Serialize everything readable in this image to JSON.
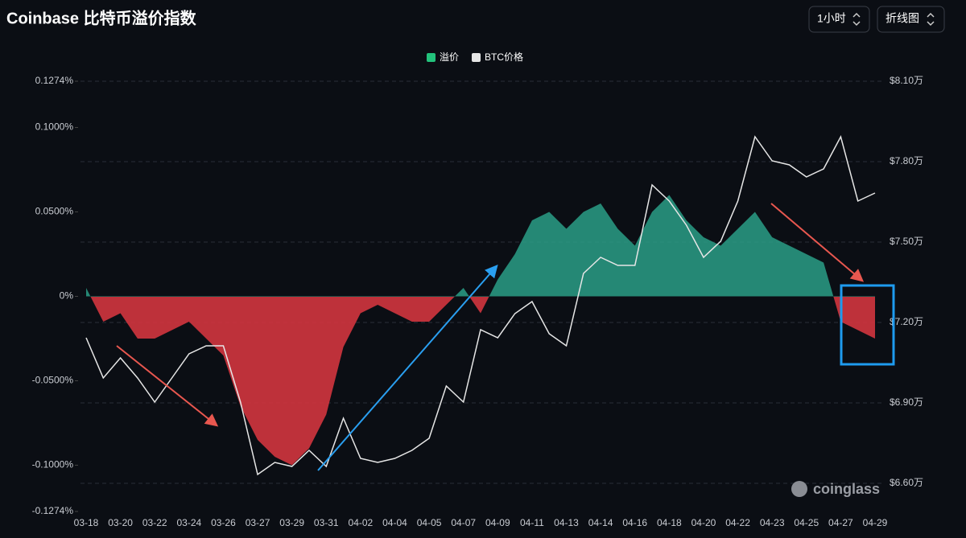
{
  "header": {
    "title": "Coinbase 比特币溢价指数",
    "interval": "1小时",
    "chart_style": "折线图"
  },
  "watermark": "coinglass",
  "chart_data": {
    "type": "combo",
    "categories": [
      "03-18",
      null,
      "03-20",
      null,
      "03-22",
      null,
      "03-24",
      null,
      "03-26",
      null,
      "03-27",
      null,
      "03-29",
      null,
      "03-31",
      null,
      "04-02",
      null,
      "04-04",
      null,
      "04-05",
      null,
      "04-07",
      null,
      "04-09",
      null,
      "04-11",
      null,
      "04-13",
      null,
      "04-14",
      null,
      "04-16",
      null,
      "04-18",
      null,
      "04-20",
      null,
      "04-22",
      null,
      "04-23",
      null,
      "04-25",
      null,
      "04-27",
      null,
      "04-29"
    ],
    "series": [
      {
        "name": "溢价",
        "type": "area",
        "color": "#2a9d86",
        "negative_color": "#d2353e",
        "values": [
          0.005,
          -0.015,
          -0.01,
          -0.025,
          -0.025,
          -0.02,
          -0.015,
          -0.025,
          -0.035,
          -0.065,
          -0.085,
          -0.095,
          -0.1,
          -0.09,
          -0.07,
          -0.03,
          -0.01,
          -0.005,
          -0.01,
          -0.015,
          -0.015,
          -0.005,
          0.005,
          -0.01,
          0.01,
          0.025,
          0.045,
          0.05,
          0.04,
          0.05,
          0.055,
          0.04,
          0.03,
          0.05,
          0.06,
          0.045,
          0.035,
          0.03,
          0.04,
          0.05,
          0.035,
          0.03,
          0.025,
          0.02,
          -0.015,
          -0.02,
          -0.025
        ]
      },
      {
        "name": "BTC价格",
        "type": "line",
        "axis": "y2",
        "color": "#e6e6e6",
        "values": [
          7.143,
          6.993,
          7.068,
          6.993,
          6.903,
          6.993,
          7.083,
          7.113,
          7.113,
          6.903,
          6.633,
          6.678,
          6.663,
          6.723,
          6.663,
          6.843,
          6.693,
          6.678,
          6.693,
          6.723,
          6.768,
          6.963,
          6.903,
          7.173,
          7.143,
          7.233,
          7.278,
          7.158,
          7.113,
          7.383,
          7.443,
          7.413,
          7.413,
          7.713,
          7.653,
          7.563,
          7.443,
          7.503,
          7.653,
          7.893,
          7.803,
          7.788,
          7.743,
          7.773,
          7.893,
          7.653,
          7.683
        ]
      }
    ],
    "ylim": [
      -0.1274,
      0.1274
    ],
    "yticks": [
      {
        "value": 0.1274,
        "label": "0.1274%"
      },
      {
        "value": 0.1,
        "label": "0.1000%"
      },
      {
        "value": 0.05,
        "label": "0.0500%"
      },
      {
        "value": 0,
        "label": "0%"
      },
      {
        "value": -0.05,
        "label": "-0.0500%"
      },
      {
        "value": -0.1,
        "label": "-0.1000%"
      },
      {
        "value": -0.1274,
        "label": "-0.1274%"
      }
    ],
    "y2lim": [
      6.495,
      8.1
    ],
    "y2ticks": [
      {
        "value": 8.1,
        "label": "$8.10万"
      },
      {
        "value": 7.8,
        "label": "$7.80万"
      },
      {
        "value": 7.5,
        "label": "$7.50万"
      },
      {
        "value": 7.2,
        "label": "$7.20万"
      },
      {
        "value": 6.9,
        "label": "$6.90万"
      },
      {
        "value": 6.6,
        "label": "$6.60万"
      }
    ],
    "grid": true,
    "legend": "top"
  }
}
